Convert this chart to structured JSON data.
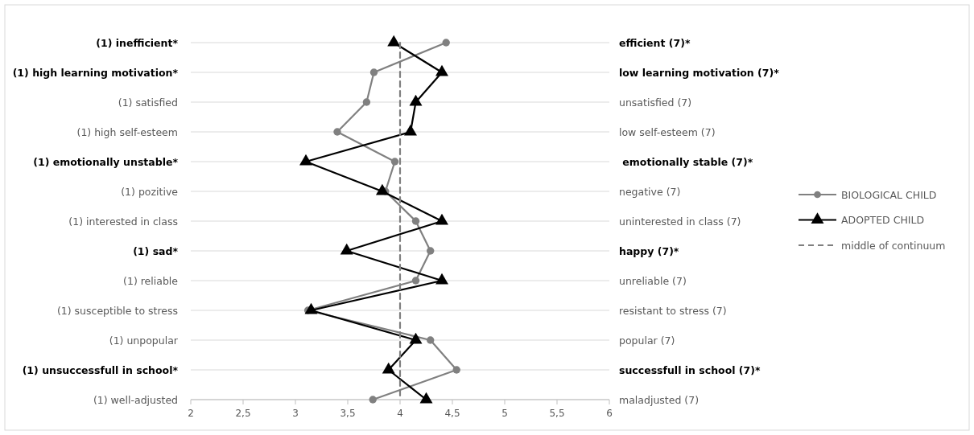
{
  "chart_data": {
    "type": "line",
    "orientation": "horizontal",
    "categories": [
      "(1) inefficient*",
      "(1) high learning motivation*",
      "(1) satisfied",
      "(1) high self-esteem",
      "(1) emotionally unstable*",
      "(1) pozitive",
      "(1) interested in class",
      "(1) sad*",
      "(1) reliable",
      "(1) susceptible to stress",
      "(1) unpopular",
      "(1) unsuccessfull in school*",
      "(1) well-adjusted"
    ],
    "y2_categories": [
      "efficient (7)*",
      "low learning motivation (7)*",
      "unsatisfied (7)",
      "low self-esteem (7)",
      " emotionally stable (7)*",
      "negative (7)",
      "uninterested in class (7)",
      "happy (7)*",
      "unreliable (7)",
      "resistant to stress (7)",
      "popular (7)",
      "successfull in school (7)*",
      "maladjusted (7)"
    ],
    "series": [
      {
        "name": "BIOLOGICAL CHILD",
        "color": "#808080",
        "marker": "circle",
        "values": [
          4.44,
          3.75,
          3.68,
          3.4,
          3.95,
          3.86,
          4.15,
          4.29,
          4.15,
          3.12,
          4.29,
          4.54,
          3.74
        ]
      },
      {
        "name": "ADOPTED CHILD",
        "color": "#000000",
        "marker": "triangle",
        "values": [
          3.94,
          4.4,
          4.15,
          4.1,
          3.1,
          3.83,
          4.4,
          3.49,
          4.4,
          3.15,
          4.15,
          3.89,
          4.25
        ]
      },
      {
        "name": "middle of continuum",
        "color": "#7f7f7f",
        "marker": "none",
        "line_style": "dashed",
        "values": [
          4,
          4,
          4,
          4,
          4,
          4,
          4,
          4,
          4,
          4,
          4,
          4,
          4
        ]
      }
    ],
    "xlim": [
      2,
      6
    ],
    "xticks": [
      2,
      {
        "value": 2.5,
        "label": "2,5"
      },
      3,
      {
        "value": 3.5,
        "label": "3,5"
      },
      4,
      {
        "value": 4.5,
        "label": "4,5"
      },
      5,
      {
        "value": 5.5,
        "label": "5,5"
      },
      6
    ],
    "grid": "y",
    "legend": "right",
    "line_style": "solid"
  }
}
